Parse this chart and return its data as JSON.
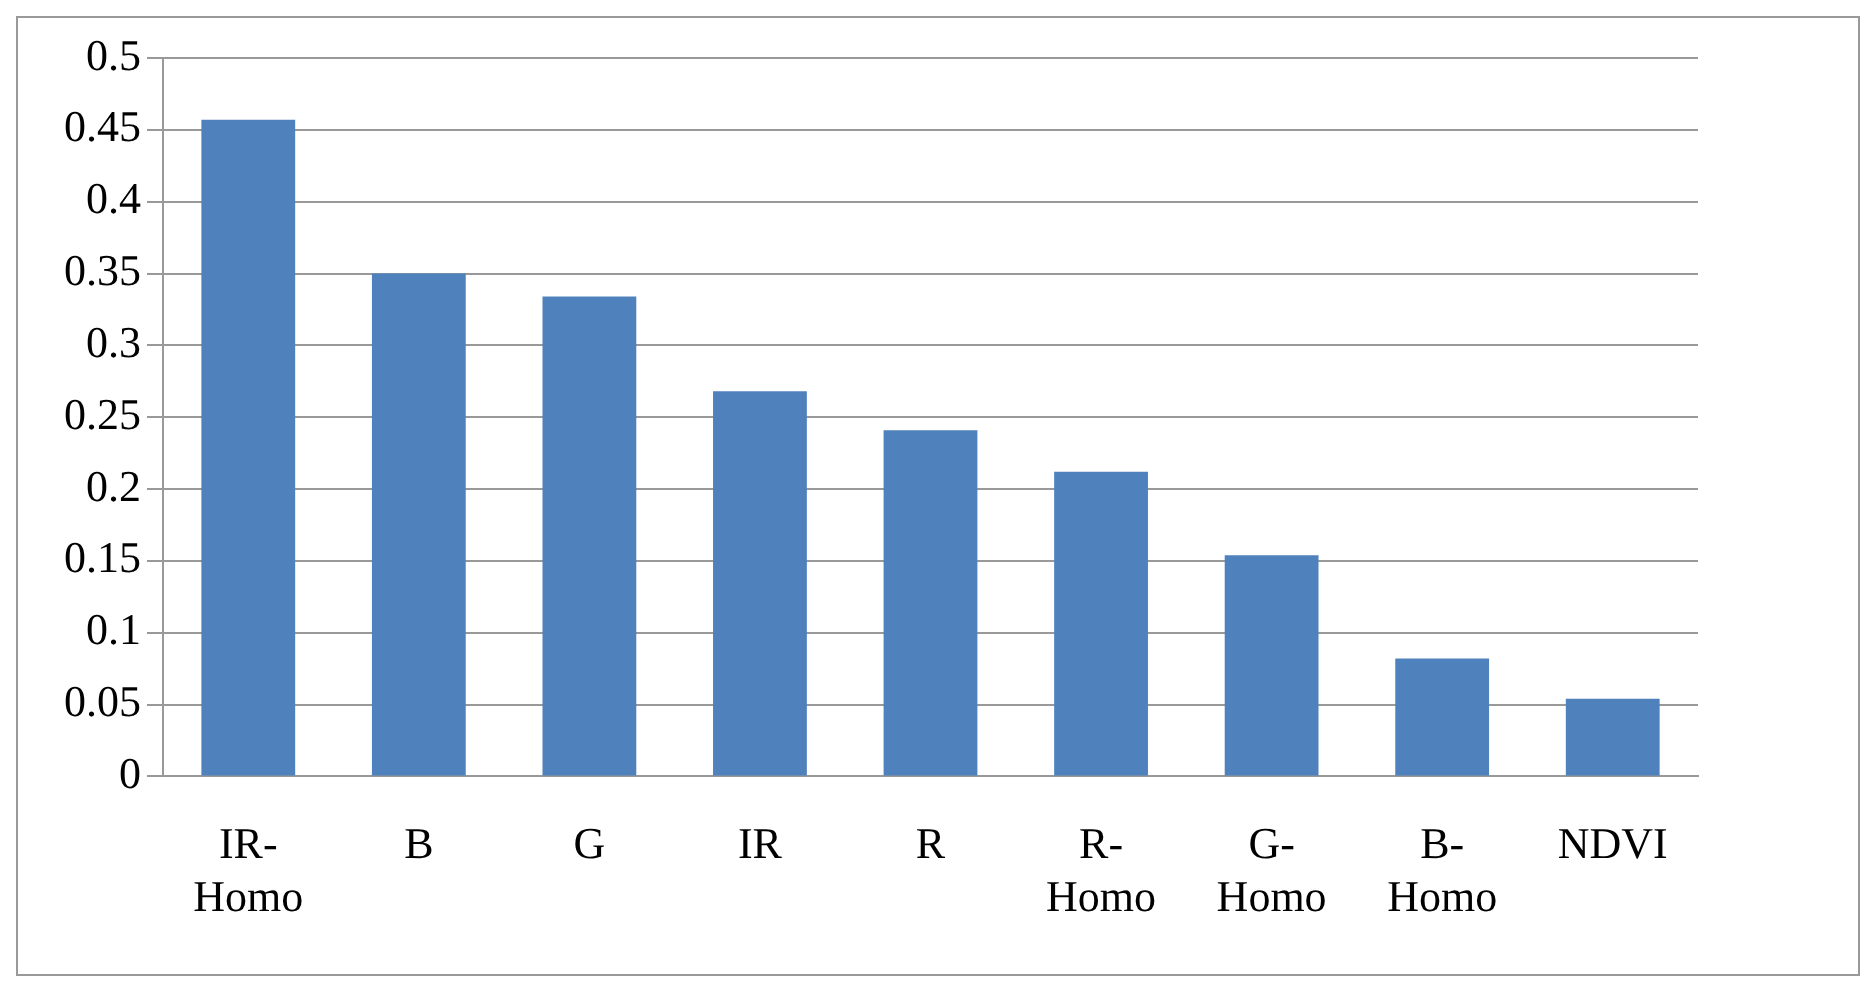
{
  "chart_data": {
    "type": "bar",
    "categories": [
      "IR-Homo",
      "B",
      "G",
      "IR",
      "R",
      "R-Homo",
      "G-Homo",
      "B-Homo",
      "NDVI"
    ],
    "values": [
      0.457,
      0.35,
      0.334,
      0.268,
      0.241,
      0.212,
      0.154,
      0.082,
      0.054
    ],
    "color": "#4f81bd",
    "ylim": [
      0,
      0.5
    ],
    "yticks": [
      0,
      0.05,
      0.1,
      0.15,
      0.2,
      0.25,
      0.3,
      0.35,
      0.4,
      0.45,
      0.5
    ],
    "grid": "y",
    "legend": false
  }
}
